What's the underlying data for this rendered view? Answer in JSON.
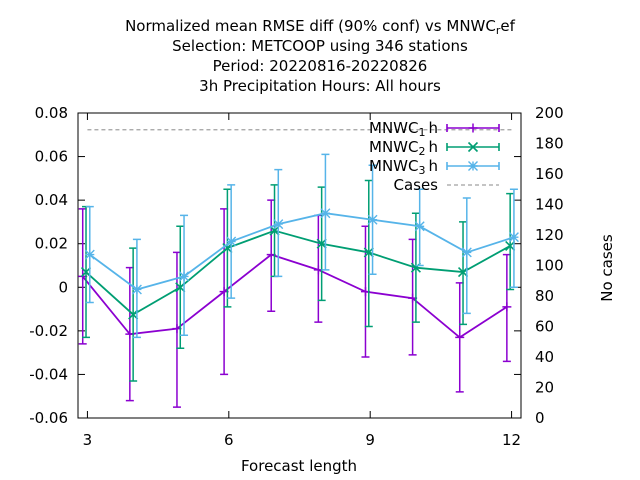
{
  "chart_data": {
    "type": "line",
    "title_lines": [
      "Normalized mean RMSE diff (90% conf) vs MNWC",
      "Selection: METCOOP using   346 stations",
      "Period: 20220816-20220826",
      "3h Precipitation   Hours:  All hours"
    ],
    "title_sub": "r",
    "title_tail": "ef",
    "xlabel": "Forecast length",
    "ylabel": "",
    "y2label": "No cases",
    "xlim": [
      2.8,
      12.2
    ],
    "ylim": [
      -0.06,
      0.08
    ],
    "y2lim": [
      0,
      200
    ],
    "xticks": [
      3,
      6,
      9,
      12
    ],
    "yticks": [
      -0.06,
      -0.04,
      -0.02,
      0,
      0.02,
      0.04,
      0.06,
      0.08
    ],
    "yticklabels": [
      "-0.06",
      "-0.04",
      "-0.02",
      "0",
      "0.02",
      "0.04",
      "0.06",
      "0.08"
    ],
    "y2ticks": [
      0,
      20,
      40,
      60,
      80,
      100,
      120,
      140,
      160,
      180,
      200
    ],
    "grid": false,
    "legend_position": "top-right",
    "series": [
      {
        "label_main": "MNWC",
        "label_sub": "1",
        "label_tail": "h",
        "color": "#8b00d0",
        "marker": "plus",
        "x": [
          2.9,
          3.9,
          4.9,
          5.9,
          6.9,
          7.9,
          8.9,
          9.9,
          10.9,
          11.9
        ],
        "y": [
          0.005,
          -0.0215,
          -0.019,
          -0.002,
          0.015,
          0.008,
          -0.002,
          -0.005,
          -0.023,
          -0.009
        ],
        "lo": [
          -0.026,
          -0.052,
          -0.055,
          -0.04,
          -0.011,
          -0.016,
          -0.032,
          -0.031,
          -0.048,
          -0.034
        ],
        "hi": [
          0.036,
          0.009,
          0.016,
          0.036,
          0.04,
          0.033,
          0.028,
          0.022,
          0.002,
          0.015
        ]
      },
      {
        "label_main": "MNWC",
        "label_sub": "2",
        "label_tail": "h",
        "color": "#009e73",
        "marker": "cross",
        "x": [
          2.97,
          3.97,
          4.97,
          5.97,
          6.97,
          7.97,
          8.97,
          9.97,
          10.97,
          11.97
        ],
        "y": [
          0.007,
          -0.0125,
          0.0,
          0.018,
          0.026,
          0.02,
          0.016,
          0.009,
          0.007,
          0.019
        ],
        "lo": [
          -0.023,
          -0.043,
          -0.028,
          -0.009,
          0.005,
          -0.006,
          -0.018,
          -0.016,
          -0.017,
          -0.001
        ],
        "hi": [
          0.037,
          0.018,
          0.028,
          0.045,
          0.047,
          0.046,
          0.049,
          0.034,
          0.03,
          0.043
        ]
      },
      {
        "label_main": "MNWC",
        "label_sub": "3",
        "label_tail": "h",
        "color": "#56b4e9",
        "marker": "star",
        "x": [
          3.05,
          4.05,
          5.05,
          6.05,
          7.05,
          8.05,
          9.05,
          10.05,
          11.05,
          12.05
        ],
        "y": [
          0.015,
          -0.001,
          0.005,
          0.021,
          0.029,
          0.034,
          0.031,
          0.028,
          0.016,
          0.023
        ],
        "lo": [
          -0.007,
          -0.023,
          -0.022,
          -0.005,
          0.005,
          0.008,
          0.006,
          0.01,
          -0.012,
          0.0
        ],
        "hi": [
          0.037,
          0.022,
          0.033,
          0.047,
          0.054,
          0.061,
          0.056,
          0.045,
          0.041,
          0.045
        ]
      }
    ],
    "cases": {
      "label": "Cases",
      "color": "#a0a0a0",
      "value": 189
    }
  }
}
